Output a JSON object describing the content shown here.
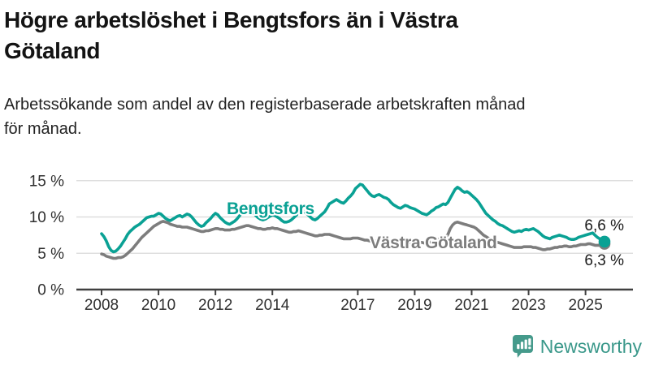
{
  "header": {
    "title_lines": [
      "Högre arbetslöshet i Bengtsfors än i Västra",
      "Götaland"
    ],
    "subtitle_lines": [
      "Arbetssökande som andel av den registerbaserade arbetskraften månad",
      "för månad."
    ]
  },
  "footer": {
    "brand": "Newsworthy",
    "brand_color": "#3a988a",
    "logo_color": "#459a8b",
    "logo_icon": "bar-chart-speech-bubble"
  },
  "chart_data": {
    "type": "line",
    "title": "Arbetssökande som andel av den registerbaserade arbetskraften månad för månad",
    "unit": "%",
    "grid": true,
    "x_start_year": 2008,
    "x_start_month": 1,
    "x_step": "month",
    "x_end_year": 2025,
    "x_end_month": 9,
    "ylim": [
      0,
      15
    ],
    "yticks": [
      {
        "value": 0,
        "label": "0 %"
      },
      {
        "value": 5,
        "label": "5 %"
      },
      {
        "value": 10,
        "label": "10 %"
      },
      {
        "value": 15,
        "label": "15 %"
      }
    ],
    "xticks": [
      "2008",
      "2010",
      "2012",
      "2014",
      "2017",
      "2019",
      "2021",
      "2023",
      "2025"
    ],
    "colors": {
      "grid": "#d9d9d9",
      "axis": "#404040",
      "tick_text": "#2f2f2f",
      "annotation_text": "#1a1a1a"
    },
    "series": [
      {
        "name": "Bengtsfors",
        "color": "#0aa194",
        "end_label": "6,6 %",
        "end_value": 6.6,
        "values": [
          7.7,
          7.3,
          6.7,
          5.9,
          5.4,
          5.2,
          5.3,
          5.6,
          6.0,
          6.5,
          7.0,
          7.6,
          8.0,
          8.3,
          8.6,
          8.8,
          9.0,
          9.3,
          9.6,
          9.9,
          10.0,
          10.1,
          10.1,
          10.3,
          10.5,
          10.4,
          10.1,
          9.8,
          9.6,
          9.5,
          9.7,
          9.9,
          10.1,
          10.2,
          10.0,
          10.2,
          10.4,
          10.3,
          10.0,
          9.6,
          9.2,
          8.9,
          8.7,
          8.8,
          9.2,
          9.5,
          9.8,
          10.2,
          10.5,
          10.3,
          9.9,
          9.6,
          9.3,
          9.1,
          9.0,
          9.2,
          9.4,
          9.7,
          10.1,
          10.5,
          10.9,
          11.1,
          11.2,
          11.0,
          10.6,
          10.2,
          9.9,
          9.7,
          9.6,
          9.7,
          9.9,
          10.1,
          10.3,
          10.2,
          10.0,
          9.8,
          9.5,
          9.3,
          9.3,
          9.4,
          9.6,
          9.9,
          10.2,
          10.6,
          10.9,
          10.8,
          10.6,
          10.3,
          10.0,
          9.7,
          9.6,
          9.8,
          10.1,
          10.4,
          10.7,
          11.2,
          11.8,
          12.0,
          12.2,
          12.4,
          12.2,
          12.0,
          11.9,
          12.2,
          12.6,
          12.9,
          13.3,
          13.9,
          14.2,
          14.5,
          14.4,
          14.0,
          13.6,
          13.2,
          12.9,
          12.8,
          13.0,
          13.1,
          12.9,
          12.7,
          12.6,
          12.4,
          12.0,
          11.7,
          11.5,
          11.3,
          11.2,
          11.4,
          11.6,
          11.5,
          11.3,
          11.2,
          11.1,
          10.9,
          10.7,
          10.5,
          10.4,
          10.3,
          10.5,
          10.8,
          11.0,
          11.3,
          11.4,
          11.6,
          11.8,
          11.7,
          12.0,
          12.6,
          13.2,
          13.8,
          14.1,
          13.9,
          13.6,
          13.4,
          13.5,
          13.3,
          13.0,
          12.7,
          12.4,
          12.0,
          11.5,
          11.0,
          10.5,
          10.2,
          9.9,
          9.6,
          9.4,
          9.1,
          8.9,
          8.8,
          8.6,
          8.4,
          8.2,
          8.0,
          7.9,
          8.0,
          8.1,
          8.0,
          8.2,
          8.3,
          8.2,
          8.3,
          8.4,
          8.2,
          8.0,
          7.7,
          7.4,
          7.2,
          7.1,
          7.0,
          7.2,
          7.3,
          7.4,
          7.5,
          7.4,
          7.3,
          7.2,
          7.0,
          6.9,
          6.9,
          7.0,
          7.2,
          7.3,
          7.4,
          7.5,
          7.6,
          7.7,
          7.8,
          7.5,
          7.2,
          7.0,
          6.8,
          6.6
        ]
      },
      {
        "name": "Västra Götaland",
        "color": "#7d7d7d",
        "end_label": "6,3 %",
        "end_value": 6.3,
        "values": [
          4.9,
          4.8,
          4.6,
          4.5,
          4.4,
          4.3,
          4.3,
          4.4,
          4.4,
          4.5,
          4.7,
          5.0,
          5.3,
          5.6,
          6.0,
          6.4,
          6.8,
          7.2,
          7.5,
          7.8,
          8.1,
          8.4,
          8.7,
          8.9,
          9.1,
          9.3,
          9.4,
          9.3,
          9.2,
          9.0,
          8.9,
          8.8,
          8.7,
          8.7,
          8.6,
          8.6,
          8.6,
          8.5,
          8.4,
          8.3,
          8.2,
          8.1,
          8.0,
          8.0,
          8.1,
          8.1,
          8.2,
          8.3,
          8.4,
          8.4,
          8.3,
          8.3,
          8.2,
          8.2,
          8.2,
          8.3,
          8.3,
          8.4,
          8.5,
          8.6,
          8.7,
          8.8,
          8.8,
          8.7,
          8.6,
          8.5,
          8.4,
          8.4,
          8.3,
          8.3,
          8.4,
          8.4,
          8.5,
          8.4,
          8.4,
          8.3,
          8.2,
          8.1,
          8.0,
          7.9,
          7.9,
          8.0,
          8.0,
          8.1,
          8.0,
          7.9,
          7.8,
          7.7,
          7.6,
          7.5,
          7.4,
          7.4,
          7.5,
          7.5,
          7.6,
          7.6,
          7.6,
          7.5,
          7.4,
          7.3,
          7.2,
          7.1,
          7.0,
          7.0,
          7.0,
          7.0,
          7.1,
          7.1,
          7.1,
          7.0,
          6.9,
          6.8,
          6.8,
          6.7,
          6.6,
          6.6,
          6.7,
          6.7,
          6.8,
          6.8,
          6.8,
          6.7,
          6.6,
          6.5,
          6.4,
          6.4,
          6.3,
          6.3,
          6.4,
          6.4,
          6.5,
          6.5,
          6.6,
          6.6,
          6.5,
          6.5,
          6.4,
          6.5,
          6.5,
          6.6,
          6.7,
          6.8,
          6.9,
          7.0,
          7.1,
          7.2,
          7.6,
          8.4,
          8.9,
          9.2,
          9.3,
          9.2,
          9.1,
          9.0,
          8.9,
          8.8,
          8.7,
          8.6,
          8.4,
          8.1,
          7.8,
          7.5,
          7.3,
          7.1,
          6.9,
          6.7,
          6.6,
          6.5,
          6.4,
          6.3,
          6.2,
          6.1,
          6.0,
          5.9,
          5.8,
          5.8,
          5.8,
          5.8,
          5.9,
          5.9,
          5.9,
          5.9,
          5.8,
          5.8,
          5.7,
          5.6,
          5.5,
          5.5,
          5.6,
          5.6,
          5.7,
          5.8,
          5.8,
          5.9,
          5.9,
          6.0,
          6.0,
          5.9,
          5.9,
          6.0,
          6.0,
          6.1,
          6.2,
          6.2,
          6.2,
          6.3,
          6.3,
          6.2,
          6.1,
          6.1,
          6.1,
          6.2,
          6.3
        ]
      }
    ]
  }
}
